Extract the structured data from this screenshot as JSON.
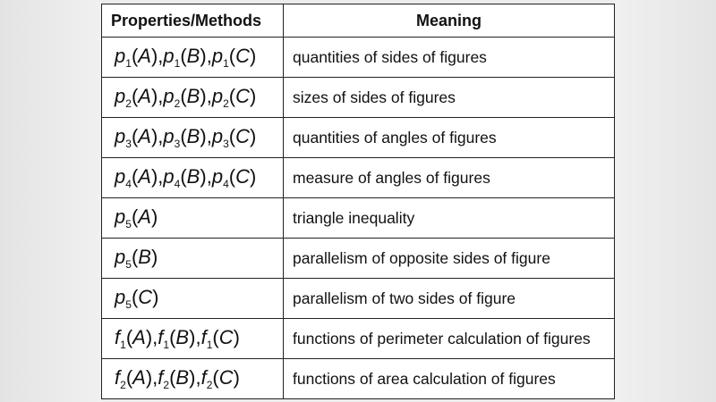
{
  "table": {
    "headers": [
      "Properties/Methods",
      "Meaning"
    ],
    "rows": [
      {
        "terms": [
          {
            "fn": "p",
            "sub": "1",
            "arg": "A"
          },
          {
            "fn": "p",
            "sub": "1",
            "arg": "B"
          },
          {
            "fn": "p",
            "sub": "1",
            "arg": "C"
          }
        ],
        "meaning": "quantities of sides of figures"
      },
      {
        "terms": [
          {
            "fn": "p",
            "sub": "2",
            "arg": "A"
          },
          {
            "fn": "p",
            "sub": "2",
            "arg": "B"
          },
          {
            "fn": "p",
            "sub": "2",
            "arg": "C"
          }
        ],
        "meaning": "sizes of sides of figures"
      },
      {
        "terms": [
          {
            "fn": "p",
            "sub": "3",
            "arg": "A"
          },
          {
            "fn": "p",
            "sub": "3",
            "arg": "B"
          },
          {
            "fn": "p",
            "sub": "3",
            "arg": "C"
          }
        ],
        "meaning": "quantities of angles of figures"
      },
      {
        "terms": [
          {
            "fn": "p",
            "sub": "4",
            "arg": "A"
          },
          {
            "fn": "p",
            "sub": "4",
            "arg": "B"
          },
          {
            "fn": "p",
            "sub": "4",
            "arg": "C"
          }
        ],
        "meaning": "measure of angles of figures"
      },
      {
        "terms": [
          {
            "fn": "p",
            "sub": "5",
            "arg": "A"
          }
        ],
        "meaning": "triangle inequality"
      },
      {
        "terms": [
          {
            "fn": "p",
            "sub": "5",
            "arg": "B"
          }
        ],
        "meaning": "parallelism of opposite sides of figure"
      },
      {
        "terms": [
          {
            "fn": "p",
            "sub": "5",
            "arg": "C"
          }
        ],
        "meaning": "parallelism of two sides of figure"
      },
      {
        "terms": [
          {
            "fn": "f",
            "sub": "1",
            "arg": "A"
          },
          {
            "fn": "f",
            "sub": "1",
            "arg": "B"
          },
          {
            "fn": "f",
            "sub": "1",
            "arg": "C"
          }
        ],
        "meaning": "functions of perimeter calculation of figures"
      },
      {
        "terms": [
          {
            "fn": "f",
            "sub": "2",
            "arg": "A"
          },
          {
            "fn": "f",
            "sub": "2",
            "arg": "B"
          },
          {
            "fn": "f",
            "sub": "2",
            "arg": "C"
          }
        ],
        "meaning": "functions of area calculation of figures"
      }
    ]
  }
}
